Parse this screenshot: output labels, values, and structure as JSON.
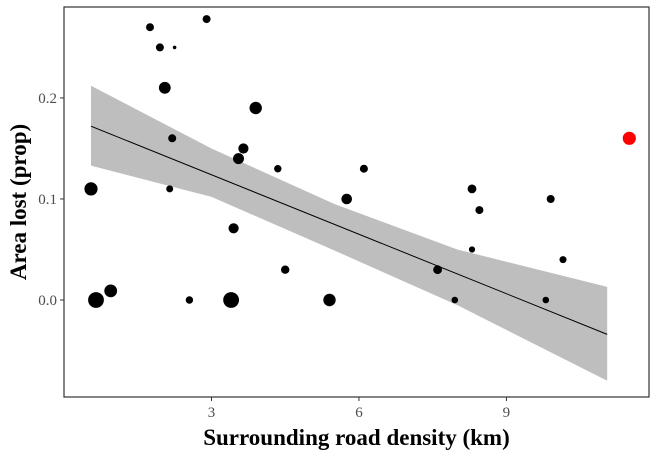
{
  "chart_data": {
    "type": "scatter",
    "title": "",
    "xlabel": "Surrounding road density (km)",
    "ylabel": "Area lost (prop)",
    "xlim": [
      0.0,
      11.9
    ],
    "ylim": [
      -0.096,
      0.29
    ],
    "xticks": [
      3,
      6,
      9
    ],
    "xtick_labels": [
      "3",
      "6",
      "9"
    ],
    "yticks": [
      0.0,
      0.1,
      0.2
    ],
    "ytick_labels": [
      "0.0",
      "0.1",
      "0.2"
    ],
    "grid": false,
    "legend": "none",
    "colors": {
      "point": "#000000",
      "highlight": "#ff0000",
      "ribbon": "#bebebe",
      "line": "#000000",
      "panel_border": "#333333"
    },
    "points": [
      {
        "x": 0.55,
        "y": 0.11,
        "size": 3.0
      },
      {
        "x": 0.65,
        "y": 0.0,
        "size": 3.6
      },
      {
        "x": 0.95,
        "y": 0.009,
        "size": 2.9
      },
      {
        "x": 1.75,
        "y": 0.27,
        "size": 1.8
      },
      {
        "x": 1.95,
        "y": 0.25,
        "size": 1.8
      },
      {
        "x": 2.05,
        "y": 0.21,
        "size": 2.7
      },
      {
        "x": 2.15,
        "y": 0.11,
        "size": 1.6
      },
      {
        "x": 2.2,
        "y": 0.16,
        "size": 1.8
      },
      {
        "x": 2.25,
        "y": 0.25,
        "size": 0.8
      },
      {
        "x": 2.55,
        "y": 0.0,
        "size": 1.7
      },
      {
        "x": 2.9,
        "y": 0.278,
        "size": 1.8
      },
      {
        "x": 3.4,
        "y": 0.0,
        "size": 3.6
      },
      {
        "x": 3.45,
        "y": 0.071,
        "size": 2.3
      },
      {
        "x": 3.55,
        "y": 0.14,
        "size": 2.5
      },
      {
        "x": 3.65,
        "y": 0.15,
        "size": 2.3
      },
      {
        "x": 3.9,
        "y": 0.19,
        "size": 2.8
      },
      {
        "x": 4.35,
        "y": 0.13,
        "size": 1.7
      },
      {
        "x": 4.5,
        "y": 0.03,
        "size": 1.9
      },
      {
        "x": 5.4,
        "y": 0.0,
        "size": 2.8
      },
      {
        "x": 5.75,
        "y": 0.1,
        "size": 2.4
      },
      {
        "x": 6.1,
        "y": 0.13,
        "size": 1.8
      },
      {
        "x": 7.6,
        "y": 0.03,
        "size": 2.0
      },
      {
        "x": 7.95,
        "y": 0.0,
        "size": 1.5
      },
      {
        "x": 8.3,
        "y": 0.11,
        "size": 2.0
      },
      {
        "x": 8.3,
        "y": 0.05,
        "size": 1.4
      },
      {
        "x": 8.45,
        "y": 0.089,
        "size": 1.8
      },
      {
        "x": 9.8,
        "y": 0.0,
        "size": 1.5
      },
      {
        "x": 9.9,
        "y": 0.1,
        "size": 1.8
      },
      {
        "x": 10.15,
        "y": 0.04,
        "size": 1.6
      },
      {
        "x": 11.5,
        "y": 0.16,
        "size": 3.0,
        "highlight": true
      }
    ],
    "trend": {
      "x": [
        0.55,
        11.05
      ],
      "y": [
        0.172,
        -0.034
      ]
    },
    "ribbon": {
      "x": [
        0.55,
        3.0,
        5.5,
        8.0,
        11.05
      ],
      "upper": [
        0.212,
        0.15,
        0.095,
        0.05,
        0.013
      ],
      "lower": [
        0.133,
        0.102,
        0.049,
        -0.005,
        -0.08
      ]
    }
  }
}
